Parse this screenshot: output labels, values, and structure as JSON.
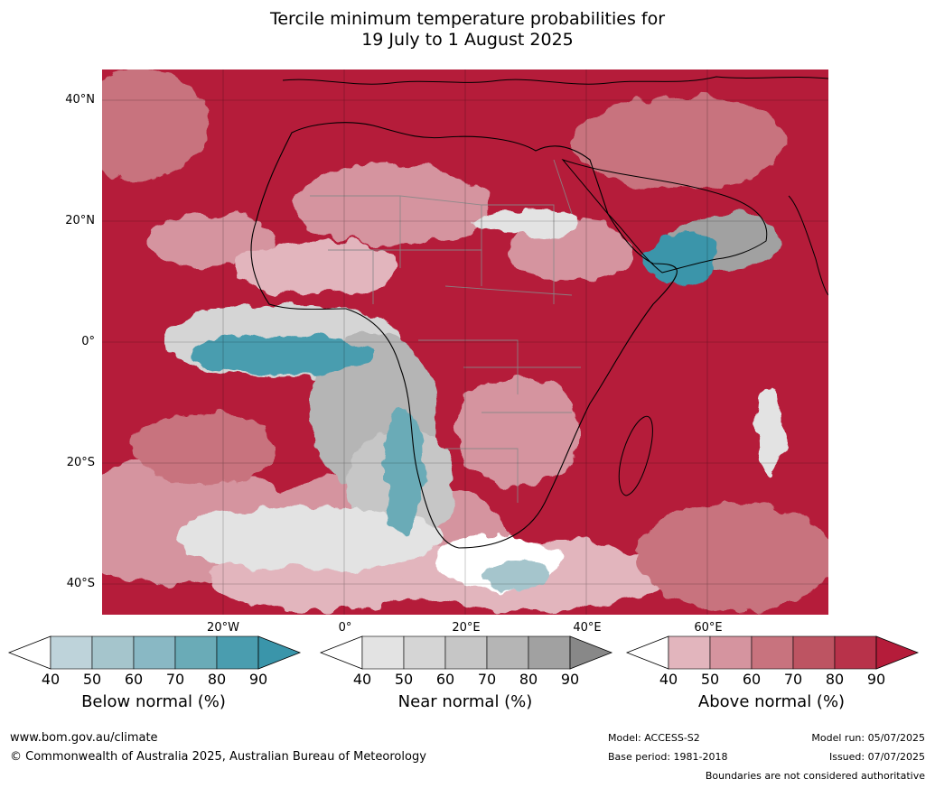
{
  "title": {
    "line1": "Tercile minimum temperature probabilities for",
    "line2": "19 July to 1 August 2025"
  },
  "map": {
    "latitude_labels": [
      "40°N",
      "20°N",
      "0°",
      "20°S",
      "40°S"
    ],
    "longitude_labels": [
      "20°W",
      "0°",
      "20°E",
      "40°E",
      "60°E"
    ],
    "colors": {
      "above_normal_dominant": "#b51c3a",
      "near_normal_grey": "#a8a8a8",
      "below_normal_teal": "#3a95aa",
      "coastline": "#000000",
      "boundaries": "#888888"
    }
  },
  "legends": [
    {
      "id": "below",
      "title": "Below normal (%)",
      "ticks": [
        "40",
        "50",
        "60",
        "70",
        "80",
        "90"
      ],
      "colors": [
        "#bed3da",
        "#a5c5cc",
        "#89b8c4",
        "#6aabb7",
        "#4a9daf"
      ],
      "extend_color": "#3a95aa"
    },
    {
      "id": "near",
      "title": "Near normal (%)",
      "ticks": [
        "40",
        "50",
        "60",
        "70",
        "80",
        "90"
      ],
      "colors": [
        "#e3e3e3",
        "#d5d5d5",
        "#c6c6c6",
        "#b5b5b5",
        "#a1a1a1"
      ],
      "extend_color": "#888888"
    },
    {
      "id": "above",
      "title": "Above normal (%)",
      "ticks": [
        "40",
        "50",
        "60",
        "70",
        "80",
        "90"
      ],
      "colors": [
        "#e2b5bd",
        "#d5949f",
        "#c8737e",
        "#bd5462",
        "#b8324a"
      ],
      "extend_color": "#b51c3a"
    }
  ],
  "footer": {
    "website": "www.bom.gov.au/climate",
    "copyright": "© Commonwealth of Australia 2025, Australian Bureau of Meteorology",
    "model": "Model: ACCESS-S2",
    "base_period": "Base period: 1981-2018",
    "model_run": "Model run: 05/07/2025",
    "issued": "Issued: 07/07/2025",
    "disclaimer": "Boundaries are not considered authoritative"
  }
}
